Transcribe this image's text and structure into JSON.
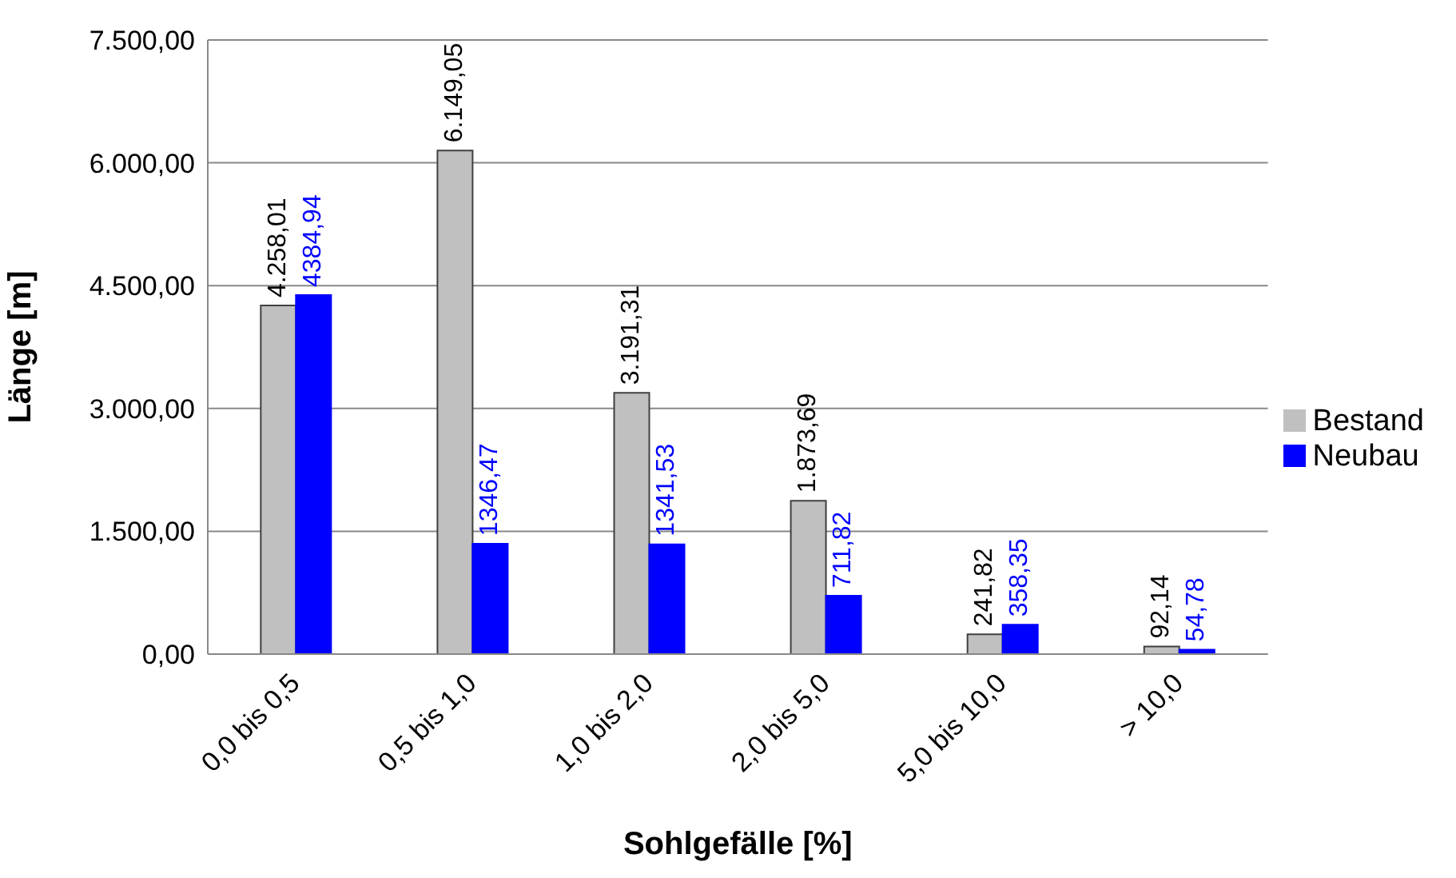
{
  "chart_data": {
    "type": "bar",
    "xlabel": "Sohlgefälle [%]",
    "ylabel": "Länge [m]",
    "categories": [
      "0,0 bis 0,5",
      "0,5 bis 1,0",
      "1,0 bis 2,0",
      "2,0 bis 5,0",
      "5,0 bis 10,0",
      "> 10,0"
    ],
    "series": [
      {
        "name": "Bestand",
        "color": "#c0c0c0",
        "values": [
          4258.01,
          6149.05,
          3191.31,
          1873.69,
          241.82,
          92.14
        ],
        "value_labels": [
          "4.258,01",
          "6.149,05",
          "3.191,31",
          "1.873,69",
          "241,82",
          "92,14"
        ]
      },
      {
        "name": "Neubau",
        "color": "#0000ff",
        "values": [
          4384.94,
          1346.47,
          1341.53,
          711.82,
          358.35,
          54.78
        ],
        "value_labels": [
          "4384,94",
          "1346,47",
          "1341,53",
          "711,82",
          "358,35",
          "54,78"
        ]
      }
    ],
    "ylim": [
      0,
      7500
    ],
    "yticks": [
      {
        "value": 0,
        "label": "0,00"
      },
      {
        "value": 1500,
        "label": "1.500,00"
      },
      {
        "value": 3000,
        "label": "3.000,00"
      },
      {
        "value": 4500,
        "label": "4.500,00"
      },
      {
        "value": 6000,
        "label": "6.000,00"
      },
      {
        "value": 7500,
        "label": "7.500,00"
      }
    ],
    "grid": "y",
    "legend": "right"
  }
}
